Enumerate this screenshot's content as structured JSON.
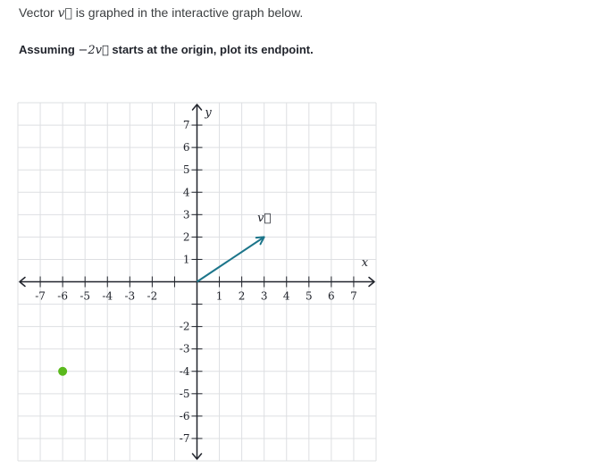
{
  "prompt": {
    "text_before": "Vector ",
    "vector_symbol": "v⃗",
    "text_after": " is graphed in the interactive graph below."
  },
  "question": {
    "text_before": "Assuming ",
    "math": "−2v⃗",
    "text_after": " starts at the origin, plot its endpoint."
  },
  "graph": {
    "x_label": "x",
    "y_label": "y",
    "vector_label": "v⃗",
    "x_range": [
      -8,
      8
    ],
    "y_range": [
      -8,
      8
    ],
    "x_tick_labels": [
      "-7",
      "-6",
      "-5",
      "-4",
      "-3",
      "-2",
      "1",
      "2",
      "3",
      "4",
      "5",
      "6",
      "7"
    ],
    "y_tick_labels": [
      "7",
      "6",
      "5",
      "4",
      "3",
      "2",
      "1",
      "-2",
      "-3",
      "-4",
      "-5",
      "-6",
      "-7"
    ],
    "vector": {
      "from": [
        0,
        0
      ],
      "to": [
        3,
        2
      ]
    },
    "point": {
      "x": -6,
      "y": -4
    },
    "colors": {
      "vector": "#1c758a",
      "point": "#5ab91c",
      "grid": "#dddfe2",
      "axis": "#21242c"
    }
  }
}
